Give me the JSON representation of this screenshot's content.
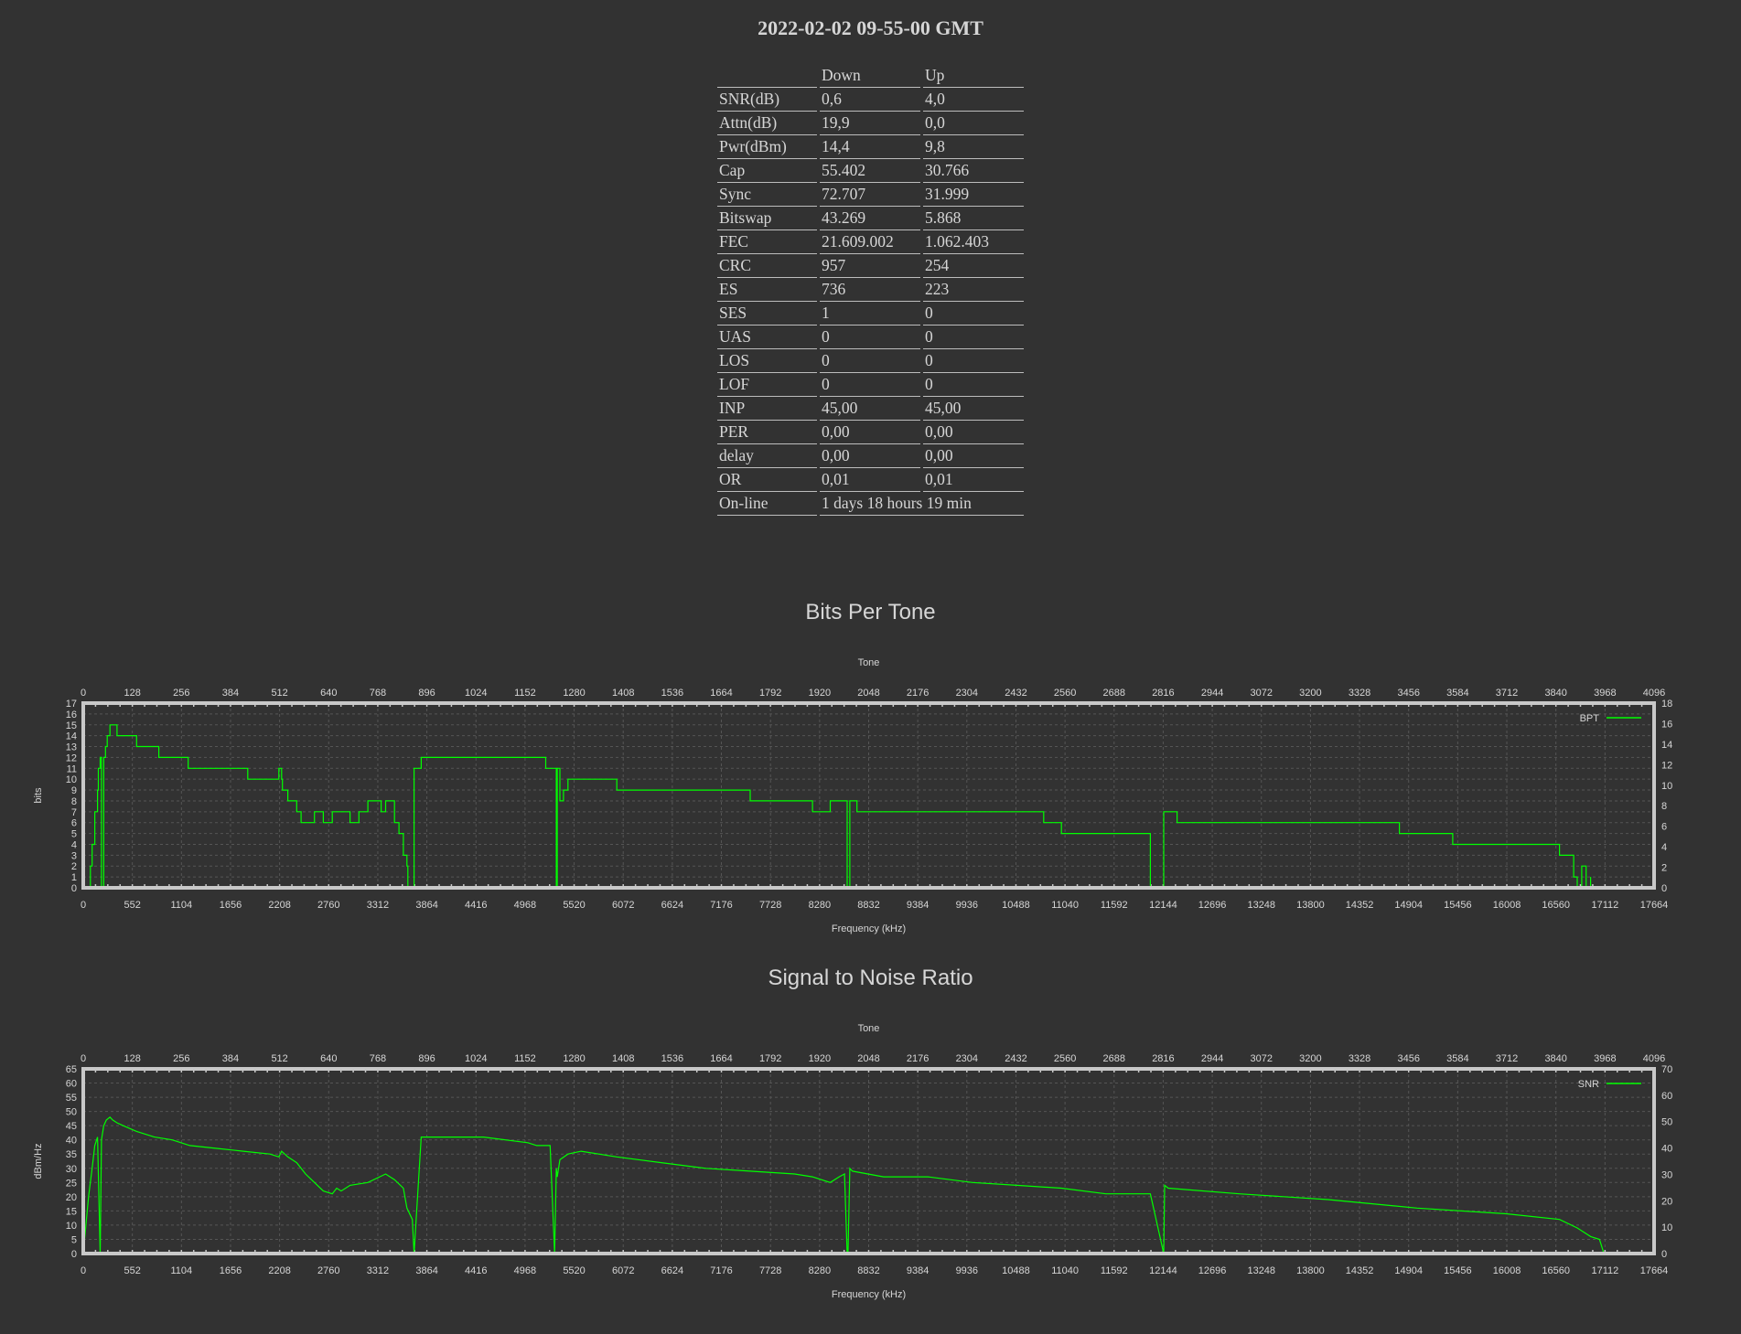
{
  "title": "2022-02-02 09-55-00 GMT",
  "stats": {
    "headers": [
      "",
      "Down",
      "Up"
    ],
    "rows": [
      [
        "SNR(dB)",
        "0,6",
        "4,0"
      ],
      [
        "Attn(dB)",
        "19,9",
        "0,0"
      ],
      [
        "Pwr(dBm)",
        "14,4",
        "9,8"
      ],
      [
        "Cap",
        "55.402",
        "30.766"
      ],
      [
        "Sync",
        "72.707",
        "31.999"
      ],
      [
        "Bitswap",
        "43.269",
        "5.868"
      ],
      [
        "FEC",
        "21.609.002",
        "1.062.403"
      ],
      [
        "CRC",
        "957",
        "254"
      ],
      [
        "ES",
        "736",
        "223"
      ],
      [
        "SES",
        "1",
        "0"
      ],
      [
        "UAS",
        "0",
        "0"
      ],
      [
        "LOS",
        "0",
        "0"
      ],
      [
        "LOF",
        "0",
        "0"
      ],
      [
        "INP",
        "45,00",
        "45,00"
      ],
      [
        "PER",
        "0,00",
        "0,00"
      ],
      [
        "delay",
        "0,00",
        "0,00"
      ],
      [
        "OR",
        "0,01",
        "0,01"
      ],
      [
        "On-line",
        "1 days 18 hours 19 min"
      ]
    ]
  },
  "colors": {
    "background": "#323232",
    "series": "#00ff00",
    "axis": "#c8c8c8",
    "text": "#d6d6d6"
  },
  "chart_data": [
    {
      "type": "line",
      "title": "Bits Per Tone",
      "x2label": "Tone",
      "xlabel": "Frequency (kHz)",
      "ylabel": "bits",
      "xlim": [
        0,
        17664
      ],
      "x2lim": [
        0,
        4096
      ],
      "ylim": [
        0,
        17
      ],
      "y2lim": [
        0,
        18
      ],
      "x_ticks": [
        0,
        552,
        1104,
        1656,
        2208,
        2760,
        3312,
        3864,
        4416,
        4968,
        5520,
        6072,
        6624,
        7176,
        7728,
        8280,
        8832,
        9384,
        9936,
        10488,
        11040,
        11592,
        12144,
        12696,
        13248,
        13800,
        14352,
        14904,
        15456,
        16008,
        16560,
        17112,
        17664
      ],
      "x2_ticks": [
        0,
        128,
        256,
        384,
        512,
        640,
        768,
        896,
        1024,
        1152,
        1280,
        1408,
        1536,
        1664,
        1792,
        1920,
        2048,
        2176,
        2304,
        2432,
        2560,
        2688,
        2816,
        2944,
        3072,
        3200,
        3328,
        3456,
        3584,
        3712,
        3840,
        3968,
        4096
      ],
      "y_ticks": [
        0,
        1,
        2,
        3,
        4,
        5,
        6,
        7,
        8,
        9,
        10,
        11,
        12,
        13,
        14,
        15,
        16,
        17
      ],
      "y2_ticks": [
        0,
        2,
        4,
        6,
        8,
        10,
        12,
        14,
        16,
        18
      ],
      "grid": true,
      "legend_position": "top-right",
      "series": [
        {
          "name": "BPT",
          "x": [
            0,
            80,
            100,
            130,
            160,
            170,
            190,
            205,
            230,
            250,
            270,
            300,
            330,
            380,
            420,
            560,
            600,
            840,
            850,
            1100,
            1120,
            1180,
            1200,
            1800,
            1850,
            2180,
            2200,
            2230,
            2240,
            2300,
            2400,
            2450,
            2600,
            2700,
            2750,
            2800,
            2900,
            3000,
            3100,
            3200,
            3300,
            3350,
            3400,
            3450,
            3500,
            3550,
            3600,
            3640,
            3650,
            3700,
            3720,
            3800,
            4000,
            5200,
            5300,
            5320,
            5330,
            5360,
            5400,
            5450,
            5500,
            5550,
            5600,
            6000,
            6200,
            6500,
            7000,
            7500,
            7900,
            8200,
            8300,
            8400,
            8500,
            8590,
            8600,
            8620,
            8650,
            8700,
            9400,
            10800,
            11000,
            11200,
            12000,
            12150,
            12160,
            12200,
            12300,
            13000,
            14800,
            15400,
            16600,
            16750,
            16760,
            16800,
            16850,
            16900,
            16950
          ],
          "y": [
            0,
            2,
            4,
            7,
            9,
            11,
            12,
            0,
            12,
            13,
            14,
            15,
            15,
            14,
            14,
            14,
            13,
            13,
            12,
            12,
            12,
            11,
            11,
            11,
            10,
            10,
            11,
            10,
            9,
            8,
            7,
            6,
            7,
            6,
            6,
            7,
            7,
            6,
            7,
            8,
            8,
            7,
            8,
            8,
            6,
            5,
            3,
            2,
            0,
            0,
            11,
            12,
            12,
            11,
            11,
            0,
            11,
            8,
            9,
            10,
            10,
            10,
            10,
            9,
            9,
            9,
            9,
            8,
            8,
            7,
            7,
            8,
            8,
            0,
            0,
            8,
            8,
            7,
            7,
            6,
            5,
            5,
            0,
            7,
            7,
            7,
            6,
            6,
            5,
            4,
            3,
            3,
            1,
            0,
            2,
            0,
            1
          ]
        }
      ]
    },
    {
      "type": "line",
      "title": "Signal to Noise Ratio",
      "x2label": "Tone",
      "xlabel": "Frequency (kHz)",
      "ylabel": "dBm/Hz",
      "xlim": [
        0,
        17664
      ],
      "x2lim": [
        0,
        4096
      ],
      "ylim": [
        0,
        65
      ],
      "y2lim": [
        0,
        70
      ],
      "x_ticks": [
        0,
        552,
        1104,
        1656,
        2208,
        2760,
        3312,
        3864,
        4416,
        4968,
        5520,
        6072,
        6624,
        7176,
        7728,
        8280,
        8832,
        9384,
        9936,
        10488,
        11040,
        11592,
        12144,
        12696,
        13248,
        13800,
        14352,
        14904,
        15456,
        16008,
        16560,
        17112,
        17664
      ],
      "x2_ticks": [
        0,
        128,
        256,
        384,
        512,
        640,
        768,
        896,
        1024,
        1152,
        1280,
        1408,
        1536,
        1664,
        1792,
        1920,
        2048,
        2176,
        2304,
        2432,
        2560,
        2688,
        2816,
        2944,
        3072,
        3200,
        3328,
        3456,
        3584,
        3712,
        3840,
        3968,
        4096
      ],
      "y_ticks": [
        0,
        5,
        10,
        15,
        20,
        25,
        30,
        35,
        40,
        45,
        50,
        55,
        60,
        65
      ],
      "y2_ticks": [
        0,
        10,
        20,
        30,
        40,
        50,
        60,
        70
      ],
      "grid": true,
      "legend_position": "top-right",
      "series": [
        {
          "name": "SNR",
          "x": [
            0,
            60,
            100,
            130,
            160,
            190,
            205,
            230,
            260,
            300,
            330,
            380,
            450,
            600,
            800,
            1000,
            1200,
            1500,
            1800,
            2100,
            2200,
            2230,
            2300,
            2400,
            2500,
            2600,
            2700,
            2800,
            2850,
            2900,
            3000,
            3200,
            3400,
            3500,
            3600,
            3640,
            3700,
            3720,
            3800,
            4000,
            4200,
            4500,
            5000,
            5100,
            5200,
            5250,
            5300,
            5320,
            5330,
            5360,
            5450,
            5600,
            6000,
            6500,
            7000,
            7500,
            8000,
            8200,
            8400,
            8500,
            8560,
            8590,
            8600,
            8620,
            8650,
            9000,
            9500,
            10000,
            10500,
            11000,
            11500,
            12000,
            12150,
            12160,
            12200,
            13000,
            14000,
            15000,
            16000,
            16600,
            16800,
            16900,
            16950,
            17050,
            17100
          ],
          "y": [
            0,
            20,
            30,
            38,
            41,
            0,
            40,
            45,
            47,
            48,
            47,
            46,
            45,
            43,
            41,
            40,
            38,
            37,
            36,
            35,
            34,
            36,
            34,
            32,
            28,
            25,
            22,
            21,
            23,
            22,
            24,
            25,
            28,
            26,
            23,
            16,
            12,
            0,
            41,
            41,
            41,
            41,
            39,
            38,
            38,
            38,
            0,
            30,
            27,
            33,
            35,
            36,
            34,
            32,
            30,
            29,
            28,
            27,
            25,
            27,
            28,
            0,
            0,
            30,
            29,
            27,
            27,
            25,
            24,
            23,
            21,
            21,
            0,
            24,
            23,
            21,
            19,
            16,
            14,
            12,
            9,
            7,
            6,
            5,
            0
          ]
        }
      ]
    }
  ]
}
